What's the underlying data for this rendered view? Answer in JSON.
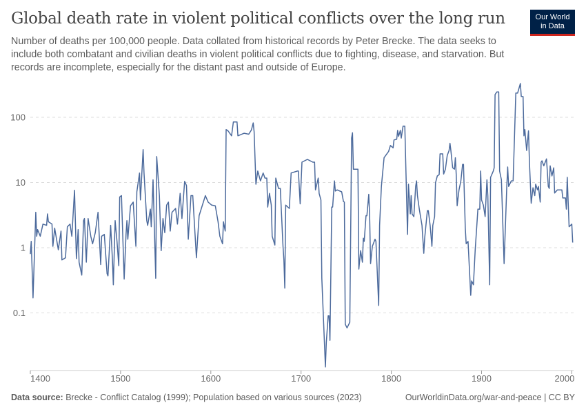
{
  "title": "Global death rate in violent political conflicts over the long run",
  "subtitle": "Number of deaths per 100,000 people. Data collated from historical records by Peter Brecke. The data seeks to include both combatant and civilian deaths in violent political conflicts due to fighting, disease, and starvation. But records are incomplete, especially for the distant past and outside of Europe.",
  "logo": {
    "line1": "Our World",
    "line2": "in Data",
    "bg": "#002147",
    "accent": "#ce261e"
  },
  "footer": {
    "source_label": "Data source:",
    "source_text": "Brecke - Conflict Catalog (1999); Population based on various sources (2023)",
    "right": "OurWorldinData.org/war-and-peace | CC BY"
  },
  "chart_data": {
    "type": "line",
    "title": "Global death rate in violent political conflicts over the long run",
    "xlabel": "",
    "ylabel": "",
    "y_scale": "log",
    "ylim": [
      0.013,
      400
    ],
    "xlim": [
      1400,
      2002
    ],
    "grid": "horizontal-dashed",
    "line_color": "#4c6a9c",
    "x_ticks": [
      1400,
      1500,
      1600,
      1700,
      1800,
      1900,
      2000
    ],
    "x_tick_labels": [
      "1400",
      "1500",
      "1600",
      "1700",
      "1800",
      "1900",
      "2000"
    ],
    "y_ticks": [
      0.1,
      1,
      10,
      100
    ],
    "y_tick_labels": [
      "0.1",
      "1",
      "10",
      "100"
    ],
    "series": [
      {
        "points": [
          [
            1400,
            0.8
          ],
          [
            1401,
            1.25
          ],
          [
            1403,
            0.17
          ],
          [
            1406,
            3.5
          ],
          [
            1407,
            1.5
          ],
          [
            1408,
            1.9
          ],
          [
            1411,
            1.5
          ],
          [
            1414,
            2.3
          ],
          [
            1418,
            2.2
          ],
          [
            1419,
            3.3
          ],
          [
            1420,
            2.5
          ],
          [
            1424,
            2.3
          ],
          [
            1425,
            1.05
          ],
          [
            1427,
            2
          ],
          [
            1431,
            0.93
          ],
          [
            1434,
            1.8
          ],
          [
            1435,
            0.65
          ],
          [
            1439,
            0.7
          ],
          [
            1441,
            2.1
          ],
          [
            1444,
            2.3
          ],
          [
            1446,
            1.5
          ],
          [
            1449,
            7.6
          ],
          [
            1451,
            0.68
          ],
          [
            1453,
            1.9
          ],
          [
            1454,
            0.6
          ],
          [
            1457,
            0.38
          ],
          [
            1459,
            2.6
          ],
          [
            1460,
            2.8
          ],
          [
            1462,
            0.6
          ],
          [
            1464,
            2.8
          ],
          [
            1467,
            1.5
          ],
          [
            1469,
            1.15
          ],
          [
            1472,
            1.7
          ],
          [
            1475,
            3.5
          ],
          [
            1478,
            0.55
          ],
          [
            1479,
            1.5
          ],
          [
            1482,
            1.6
          ],
          [
            1485,
            0.4
          ],
          [
            1486,
            0.37
          ],
          [
            1489,
            2.2
          ],
          [
            1491,
            0.65
          ],
          [
            1492,
            0.27
          ],
          [
            1494,
            2.6
          ],
          [
            1496,
            1.25
          ],
          [
            1498,
            0.53
          ],
          [
            1499,
            6
          ],
          [
            1501,
            6.3
          ],
          [
            1504,
            0.33
          ],
          [
            1506,
            1.6
          ],
          [
            1507,
            2.6
          ],
          [
            1508,
            1.35
          ],
          [
            1511,
            4.4
          ],
          [
            1514,
            5
          ],
          [
            1517,
            1.05
          ],
          [
            1518,
            7.2
          ],
          [
            1521,
            14
          ],
          [
            1522,
            5.4
          ],
          [
            1525,
            32
          ],
          [
            1526,
            14
          ],
          [
            1529,
            2.6
          ],
          [
            1530,
            2.2
          ],
          [
            1533,
            3.9
          ],
          [
            1534,
            2.1
          ],
          [
            1536,
            11
          ],
          [
            1539,
            0.34
          ],
          [
            1540,
            25
          ],
          [
            1543,
            6.3
          ],
          [
            1545,
            0.9
          ],
          [
            1547,
            2.8
          ],
          [
            1549,
            1.7
          ],
          [
            1551,
            4.5
          ],
          [
            1553,
            5
          ],
          [
            1555,
            1.8
          ],
          [
            1557,
            3.5
          ],
          [
            1561,
            4
          ],
          [
            1563,
            2.3
          ],
          [
            1566,
            6.8
          ],
          [
            1568,
            2.8
          ],
          [
            1571,
            10.4
          ],
          [
            1573,
            9
          ],
          [
            1575,
            1.35
          ],
          [
            1578,
            6.3
          ],
          [
            1580,
            6.3
          ],
          [
            1584,
            0.7
          ],
          [
            1587,
            3.1
          ],
          [
            1590,
            4.2
          ],
          [
            1594,
            6.3
          ],
          [
            1597,
            5
          ],
          [
            1601,
            4.5
          ],
          [
            1605,
            4.4
          ],
          [
            1608,
            2.5
          ],
          [
            1610,
            1.5
          ],
          [
            1613,
            1.15
          ],
          [
            1614,
            2.5
          ],
          [
            1616,
            1.8
          ],
          [
            1617,
            65
          ],
          [
            1619,
            62
          ],
          [
            1623,
            52
          ],
          [
            1625,
            85
          ],
          [
            1629,
            85
          ],
          [
            1630,
            52
          ],
          [
            1637,
            57
          ],
          [
            1642,
            55
          ],
          [
            1645,
            64
          ],
          [
            1647,
            82
          ],
          [
            1648,
            60
          ],
          [
            1650,
            9.4
          ],
          [
            1652,
            15
          ],
          [
            1655,
            10.6
          ],
          [
            1658,
            14
          ],
          [
            1660,
            11.7
          ],
          [
            1662,
            11.7
          ],
          [
            1663,
            4.2
          ],
          [
            1665,
            6.8
          ],
          [
            1667,
            4.5
          ],
          [
            1668,
            1.5
          ],
          [
            1671,
            1.1
          ],
          [
            1672,
            11.7
          ],
          [
            1675,
            8.1
          ],
          [
            1677,
            8.1
          ],
          [
            1680,
            1.05
          ],
          [
            1681,
            0.65
          ],
          [
            1682,
            0.24
          ],
          [
            1683,
            4.5
          ],
          [
            1687,
            4
          ],
          [
            1689,
            14
          ],
          [
            1696,
            15
          ],
          [
            1697,
            15
          ],
          [
            1699,
            4.7
          ],
          [
            1701,
            20.5
          ],
          [
            1707,
            22.6
          ],
          [
            1713,
            20.5
          ],
          [
            1715,
            20.5
          ],
          [
            1716,
            7.7
          ],
          [
            1719,
            11.7
          ],
          [
            1720,
            6.8
          ],
          [
            1722,
            5.4
          ],
          [
            1723,
            0.34
          ],
          [
            1727,
            0.0148
          ],
          [
            1728,
            0.035
          ],
          [
            1730,
            0.09
          ],
          [
            1731,
            0.09
          ],
          [
            1732,
            0.038
          ],
          [
            1734,
            4.2
          ],
          [
            1735,
            4.2
          ],
          [
            1737,
            10.6
          ],
          [
            1738,
            7.4
          ],
          [
            1740,
            7.7
          ],
          [
            1745,
            7.2
          ],
          [
            1747,
            5.1
          ],
          [
            1748,
            5
          ],
          [
            1749,
            0.067
          ],
          [
            1751,
            0.059
          ],
          [
            1754,
            0.072
          ],
          [
            1756,
            48
          ],
          [
            1757,
            58
          ],
          [
            1758,
            16
          ],
          [
            1763,
            16
          ],
          [
            1764,
            0.47
          ],
          [
            1766,
            0.9
          ],
          [
            1768,
            0.6
          ],
          [
            1769,
            1.4
          ],
          [
            1770,
            1.25
          ],
          [
            1772,
            3.1
          ],
          [
            1773,
            3.1
          ],
          [
            1775,
            6.6
          ],
          [
            1776,
            3
          ],
          [
            1777,
            0.57
          ],
          [
            1779,
            1.05
          ],
          [
            1782,
            1.35
          ],
          [
            1783,
            1.25
          ],
          [
            1786,
            0.13
          ],
          [
            1787,
            2.2
          ],
          [
            1789,
            8.7
          ],
          [
            1792,
            24
          ],
          [
            1797,
            30
          ],
          [
            1799,
            37
          ],
          [
            1802,
            34
          ],
          [
            1803,
            45
          ],
          [
            1806,
            46
          ],
          [
            1807,
            63
          ],
          [
            1808,
            51
          ],
          [
            1810,
            63
          ],
          [
            1811,
            48
          ],
          [
            1813,
            73
          ],
          [
            1815,
            73
          ],
          [
            1818,
            1.6
          ],
          [
            1819,
            9.4
          ],
          [
            1821,
            3.3
          ],
          [
            1822,
            6.3
          ],
          [
            1823,
            3.3
          ],
          [
            1825,
            3
          ],
          [
            1827,
            8.7
          ],
          [
            1828,
            10.6
          ],
          [
            1829,
            6.3
          ],
          [
            1831,
            3.9
          ],
          [
            1834,
            2.2
          ],
          [
            1836,
            0.82
          ],
          [
            1837,
            1.4
          ],
          [
            1840,
            3.7
          ],
          [
            1841,
            3.7
          ],
          [
            1843,
            2.2
          ],
          [
            1845,
            1.05
          ],
          [
            1846,
            2.2
          ],
          [
            1848,
            3
          ],
          [
            1849,
            9.9
          ],
          [
            1851,
            12.6
          ],
          [
            1853,
            13.2
          ],
          [
            1854,
            27.5
          ],
          [
            1857,
            27.5
          ],
          [
            1858,
            13.5
          ],
          [
            1860,
            16
          ],
          [
            1862,
            26
          ],
          [
            1864,
            31
          ],
          [
            1865,
            40
          ],
          [
            1866,
            31
          ],
          [
            1868,
            16.8
          ],
          [
            1870,
            16
          ],
          [
            1871,
            24
          ],
          [
            1872,
            13
          ],
          [
            1873,
            4.4
          ],
          [
            1875,
            7.7
          ],
          [
            1877,
            10.4
          ],
          [
            1879,
            19
          ],
          [
            1880,
            19
          ],
          [
            1882,
            2
          ],
          [
            1883,
            1.15
          ],
          [
            1885,
            1.25
          ],
          [
            1888,
            0.186
          ],
          [
            1889,
            0.31
          ],
          [
            1891,
            0.27
          ],
          [
            1893,
            0.93
          ],
          [
            1896,
            3.9
          ],
          [
            1898,
            3.9
          ],
          [
            1899,
            15
          ],
          [
            1900,
            5.4
          ],
          [
            1902,
            4.5
          ],
          [
            1904,
            3
          ],
          [
            1906,
            11
          ],
          [
            1907,
            6.3
          ],
          [
            1909,
            0.27
          ],
          [
            1910,
            12
          ],
          [
            1913,
            15
          ],
          [
            1914,
            16.8
          ],
          [
            1915,
            223
          ],
          [
            1917,
            245
          ],
          [
            1919,
            245
          ],
          [
            1920,
            15
          ],
          [
            1922,
            11
          ],
          [
            1925,
            0.57
          ],
          [
            1928,
            8.7
          ],
          [
            1929,
            17.3
          ],
          [
            1930,
            8.7
          ],
          [
            1933,
            10.6
          ],
          [
            1935,
            10.6
          ],
          [
            1938,
            235
          ],
          [
            1940,
            235
          ],
          [
            1943,
            330
          ],
          [
            1944,
            208
          ],
          [
            1946,
            208
          ],
          [
            1947,
            52
          ],
          [
            1948,
            65
          ],
          [
            1950,
            31
          ],
          [
            1952,
            62
          ],
          [
            1953,
            21.5
          ],
          [
            1955,
            4.8
          ],
          [
            1957,
            8.3
          ],
          [
            1959,
            6.3
          ],
          [
            1960,
            9.4
          ],
          [
            1962,
            7.7
          ],
          [
            1963,
            8.7
          ],
          [
            1965,
            5
          ],
          [
            1966,
            20.5
          ],
          [
            1967,
            21.5
          ],
          [
            1969,
            18
          ],
          [
            1972,
            23
          ],
          [
            1974,
            8.7
          ],
          [
            1975,
            8.1
          ],
          [
            1976,
            18
          ],
          [
            1978,
            12.6
          ],
          [
            1980,
            16.8
          ],
          [
            1981,
            6.9
          ],
          [
            1984,
            7.7
          ],
          [
            1989,
            7.7
          ],
          [
            1990,
            5.8
          ],
          [
            1993,
            5.8
          ],
          [
            1994,
            3.9
          ],
          [
            1995,
            12
          ],
          [
            1997,
            2.1
          ],
          [
            2000,
            2.3
          ],
          [
            2001,
            1.2
          ]
        ]
      }
    ]
  }
}
